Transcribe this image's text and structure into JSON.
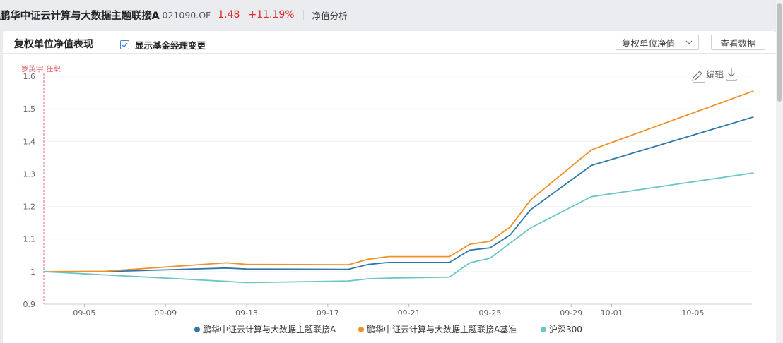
{
  "header": {
    "fund_name": "鹏华中证云计算与大数据主题联接A",
    "fund_code": "021090.OF",
    "nav": "1.48",
    "change": "+11.19%",
    "tab": "净值分析"
  },
  "panel": {
    "title": "复权单位净值表现",
    "checkbox_label": "显示基金经理变更",
    "checkbox_checked": true,
    "select_value": "复权单位净值",
    "view_data_label": "查看数据",
    "edit_label": "编辑"
  },
  "colors": {
    "accent_red": "#e0292b",
    "series_1": "#2e78a7",
    "series_2": "#f0902a",
    "series_3": "#6cc6c8",
    "manager_marker": "#e4636b"
  },
  "chart_data": {
    "type": "line",
    "manager_event": {
      "label": "罗英宇 任职",
      "date": "09-03"
    },
    "x_ticks": [
      "09-05",
      "09-09",
      "09-13",
      "09-17",
      "09-21",
      "09-25",
      "09-29",
      "10-01",
      "10-05"
    ],
    "y_ticks": [
      "0.9",
      "1",
      "1.1",
      "1.2",
      "1.3",
      "1.4",
      "1.5",
      "1.6"
    ],
    "ylim": [
      0.9,
      1.6
    ],
    "dates": [
      "09-03",
      "09-06",
      "09-12",
      "09-13",
      "09-18",
      "09-19",
      "09-20",
      "09-23",
      "09-24",
      "09-25",
      "09-26",
      "09-27",
      "09-30",
      "10-08"
    ],
    "series": [
      {
        "name": "鹏华中证云计算与大数据主题联接A",
        "values": [
          1.0,
          1.0,
          1.011,
          1.008,
          1.007,
          1.022,
          1.028,
          1.028,
          1.066,
          1.073,
          1.113,
          1.19,
          1.326,
          1.475
        ]
      },
      {
        "name": "鹏华中证云计算与大数据主题联接A基准",
        "values": [
          1.0,
          1.001,
          1.027,
          1.022,
          1.021,
          1.038,
          1.046,
          1.046,
          1.084,
          1.093,
          1.137,
          1.22,
          1.374,
          1.555
        ]
      },
      {
        "name": "沪深300",
        "values": [
          1.0,
          0.99,
          0.97,
          0.966,
          0.971,
          0.978,
          0.98,
          0.983,
          1.027,
          1.041,
          1.088,
          1.134,
          1.23,
          1.303
        ]
      }
    ],
    "legend_position": "bottom",
    "grid": true
  }
}
